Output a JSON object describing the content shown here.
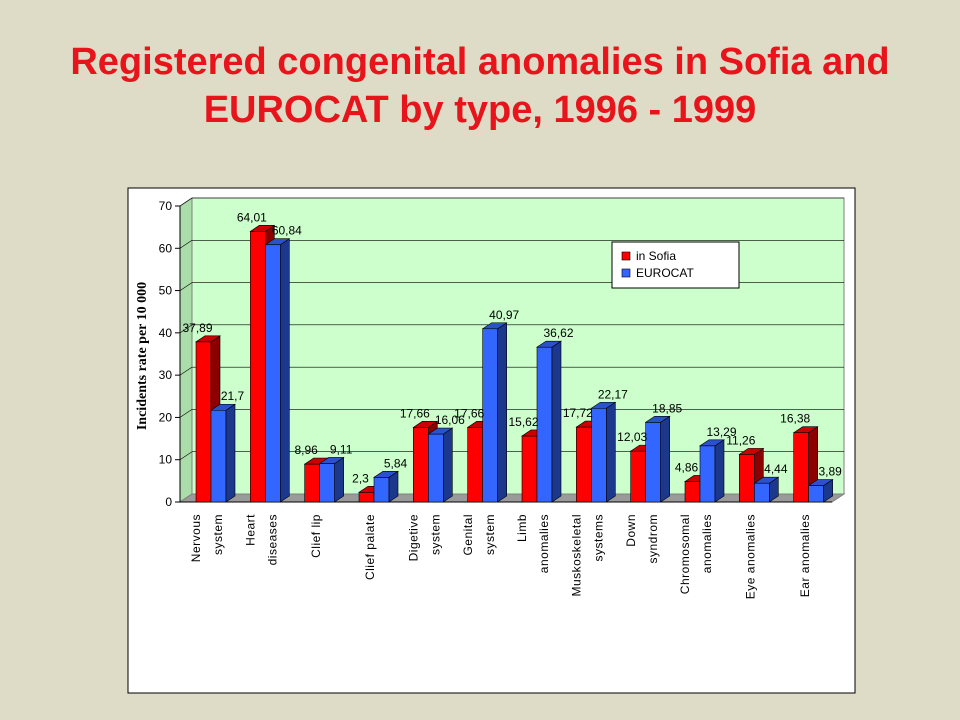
{
  "slide": {
    "title_line1": "Registered congenital anomalies in Sofia and",
    "title_line2": "EUROCAT by type, 1996 - 1999"
  },
  "colors": {
    "background": "#dedcc6",
    "title": "#e8141b",
    "plot_area": "#ccffcc",
    "sofia": "#ff0000",
    "eurocat": "#3366ff"
  },
  "chart_data": {
    "type": "bar",
    "bar_style": "3d-clustered",
    "title": "",
    "xlabel": "",
    "ylabel": "Incidents rate per 10 000",
    "ylim": [
      0,
      70
    ],
    "yticks": [
      0,
      10,
      20,
      30,
      40,
      50,
      60,
      70
    ],
    "grid": true,
    "legend_position": "top-right",
    "categories": [
      [
        "Nervous",
        "system"
      ],
      [
        "Heart",
        "diseases"
      ],
      [
        "Clief lip"
      ],
      [
        "Clief palate"
      ],
      [
        "Digetive",
        "system"
      ],
      [
        "Genital",
        "system"
      ],
      [
        "Limb",
        "anomalies"
      ],
      [
        "Muskoskeletal",
        "systems"
      ],
      [
        "Down",
        "syndrom"
      ],
      [
        "Chromosomal",
        "anomalies"
      ],
      [
        "Eye anomalies"
      ],
      [
        "Ear anomalies"
      ]
    ],
    "series": [
      {
        "name": "in Sofia",
        "values": [
          37.89,
          64.01,
          8.96,
          2.3,
          17.66,
          17.66,
          15.62,
          17.72,
          12.03,
          4.86,
          11.26,
          16.38
        ],
        "labels": [
          "37,89",
          "64,01",
          "8,96",
          "2,3",
          "17,66",
          "17,66",
          "15,62",
          "17,72",
          "12,03",
          "4,86",
          "11,26",
          "16,38"
        ]
      },
      {
        "name": "EUROCAT",
        "values": [
          21.7,
          60.84,
          9.11,
          5.84,
          16.06,
          40.97,
          36.62,
          22.17,
          18.85,
          13.29,
          4.44,
          3.89
        ],
        "labels": [
          "21,7",
          "60,84",
          "9,11",
          "5,84",
          "16,06",
          "40,97",
          "36,62",
          "22,17",
          "18,85",
          "13,29",
          "4,44",
          "3,89"
        ]
      }
    ]
  }
}
